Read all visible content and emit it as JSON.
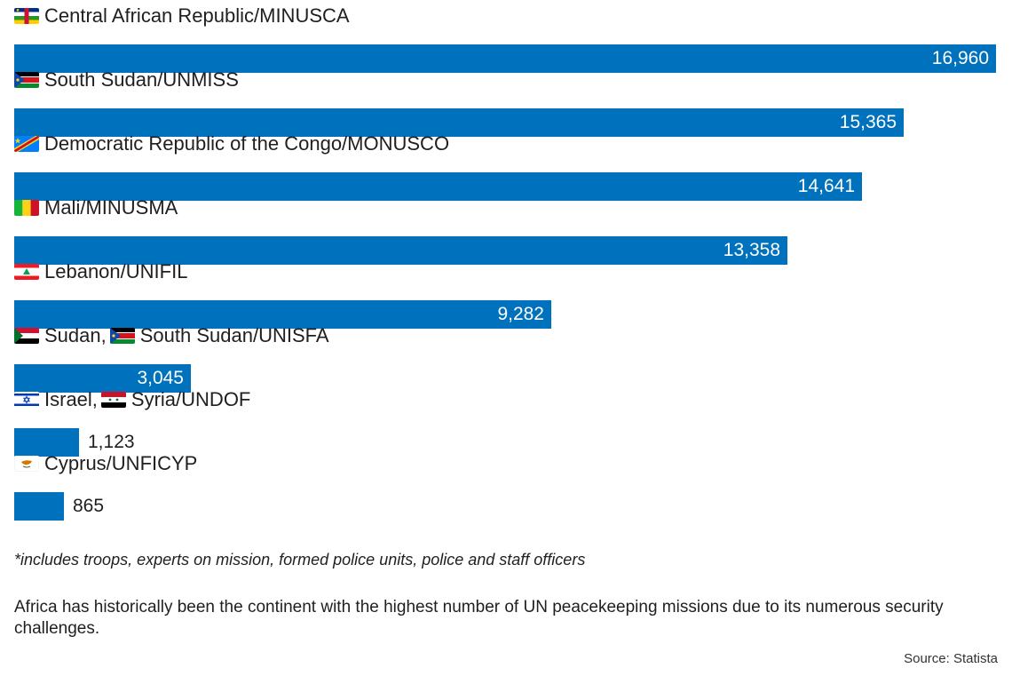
{
  "chart_data": {
    "type": "bar",
    "orientation": "horizontal",
    "categories": [
      "Central African Republic/MINUSCA",
      "South Sudan/UNMISS",
      "Democratic Republic of the Congo/MONUSCO",
      "Mali/MINUSMA",
      "Lebanon/UNIFIL",
      "Sudan, South Sudan/UNISFA",
      "Israel, Syria/UNDOF",
      "Cyprus/UNFICYP"
    ],
    "category_label_parts": [
      [
        "Central African Republic/MINUSCA"
      ],
      [
        "South Sudan/UNMISS"
      ],
      [
        "Democratic Republic of the Congo/MONUSCO"
      ],
      [
        "Mali/MINUSMA"
      ],
      [
        "Lebanon/UNIFIL"
      ],
      [
        "Sudan,",
        "South Sudan/UNISFA"
      ],
      [
        "Israel,",
        "Syria/UNDOF"
      ],
      [
        "Cyprus/UNFICYP"
      ]
    ],
    "flag_icons": [
      [
        "central-african-republic-flag-icon"
      ],
      [
        "south-sudan-flag-icon"
      ],
      [
        "dr-congo-flag-icon"
      ],
      [
        "mali-flag-icon"
      ],
      [
        "lebanon-flag-icon"
      ],
      [
        "sudan-flag-icon",
        "south-sudan-flag-icon"
      ],
      [
        "israel-flag-icon",
        "syria-flag-icon"
      ],
      [
        "cyprus-flag-icon"
      ]
    ],
    "values": [
      16960,
      15365,
      14641,
      13358,
      9282,
      3045,
      1123,
      865
    ],
    "value_labels": [
      "16,960",
      "15,365",
      "14,641",
      "13,358",
      "9,282",
      "3,045",
      "1,123",
      "865"
    ],
    "xlim": [
      0,
      16960
    ],
    "bar_color": "#0071bc",
    "grid": false,
    "legend": "none"
  },
  "footnote": "*includes troops, experts on mission, formed police units, police and staff officers",
  "description": "Africa has historically been the continent with the highest number of UN peacekeeping missions due to its numerous security challenges.",
  "source": "Source: Statista"
}
